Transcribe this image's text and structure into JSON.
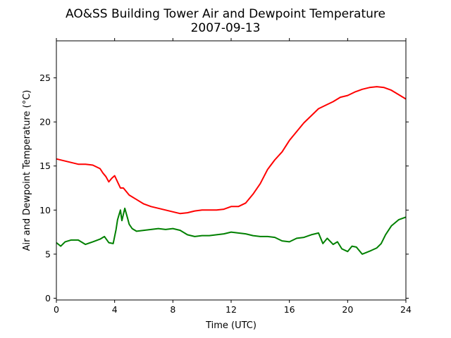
{
  "chart_data": {
    "type": "line",
    "title": "AO&SS Building Tower Air and Dewpoint Temperature",
    "subtitle": "2007-09-13",
    "xlabel": "Time (UTC)",
    "ylabel": "Air and Dewpoint Temperature (°C)",
    "xlim": [
      0,
      24
    ],
    "ylim": [
      -0.2,
      29.2
    ],
    "xticks": [
      0,
      4,
      8,
      12,
      16,
      20,
      24
    ],
    "yticks": [
      0,
      5,
      10,
      15,
      20,
      25
    ],
    "grid": false,
    "legend": "none",
    "series": [
      {
        "color": "#ff0000",
        "x": [
          0,
          0.5,
          1,
          1.5,
          2,
          2.5,
          3,
          3.2,
          3.4,
          3.6,
          3.8,
          4.0,
          4.2,
          4.4,
          4.6,
          4.8,
          5.0,
          5.5,
          6,
          6.5,
          7,
          7.5,
          8,
          8.5,
          9,
          9.5,
          10,
          10.5,
          11,
          11.5,
          12,
          12.5,
          13,
          13.5,
          14,
          14.5,
          15,
          15.5,
          16,
          16.5,
          17,
          17.5,
          18,
          18.5,
          19,
          19.5,
          20,
          20.5,
          21,
          21.5,
          22,
          22.5,
          23,
          23.5,
          24
        ],
        "y": [
          15.8,
          15.6,
          15.4,
          15.2,
          15.2,
          15.1,
          14.7,
          14.2,
          13.8,
          13.2,
          13.6,
          13.9,
          13.2,
          12.5,
          12.5,
          12.1,
          11.7,
          11.2,
          10.7,
          10.4,
          10.2,
          10.0,
          9.8,
          9.6,
          9.7,
          9.9,
          10.0,
          10.0,
          10.0,
          10.1,
          10.4,
          10.4,
          10.8,
          11.8,
          13.0,
          14.6,
          15.7,
          16.6,
          17.9,
          18.9,
          19.9,
          20.7,
          21.5,
          21.9,
          22.3,
          22.8,
          23.0,
          23.4,
          23.7,
          23.9,
          24.0,
          23.9,
          23.6,
          23.1,
          22.6
        ]
      },
      {
        "color": "#008000",
        "x": [
          0,
          0.3,
          0.6,
          1,
          1.5,
          2,
          2.5,
          3,
          3.3,
          3.6,
          3.9,
          4.1,
          4.2,
          4.4,
          4.5,
          4.7,
          4.9,
          5.0,
          5.2,
          5.5,
          6,
          6.5,
          7,
          7.5,
          8,
          8.5,
          9,
          9.5,
          10,
          10.5,
          11,
          11.5,
          12,
          12.5,
          13,
          13.5,
          14,
          14.5,
          15,
          15.5,
          16,
          16.5,
          17,
          17.5,
          18,
          18.3,
          18.6,
          19,
          19.3,
          19.6,
          20,
          20.3,
          20.6,
          21,
          21.3,
          21.6,
          22,
          22.3,
          22.6,
          23,
          23.5,
          24
        ],
        "y": [
          6.3,
          5.9,
          6.4,
          6.6,
          6.6,
          6.1,
          6.4,
          6.7,
          7.0,
          6.3,
          6.2,
          7.8,
          8.9,
          10.0,
          8.8,
          10.2,
          9.0,
          8.4,
          7.9,
          7.6,
          7.7,
          7.8,
          7.9,
          7.8,
          7.9,
          7.7,
          7.2,
          7.0,
          7.1,
          7.1,
          7.2,
          7.3,
          7.5,
          7.4,
          7.3,
          7.1,
          7.0,
          7.0,
          6.9,
          6.5,
          6.4,
          6.8,
          6.9,
          7.2,
          7.4,
          6.2,
          6.8,
          6.1,
          6.4,
          5.6,
          5.3,
          5.9,
          5.8,
          5.0,
          5.2,
          5.4,
          5.7,
          6.2,
          7.2,
          8.2,
          8.9,
          9.2
        ]
      }
    ]
  }
}
